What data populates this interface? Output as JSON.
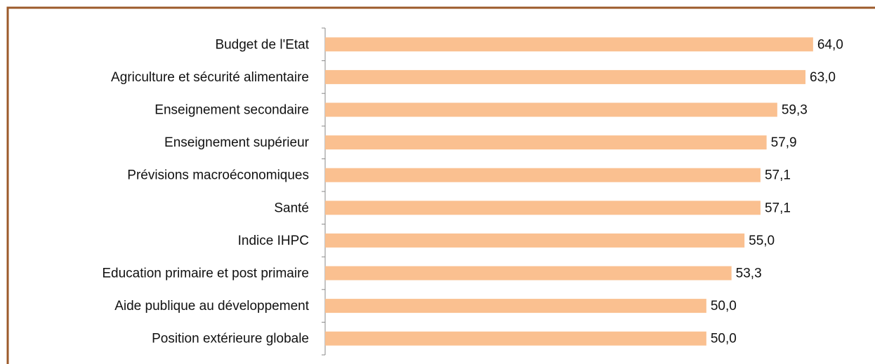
{
  "chart_data": {
    "type": "hbar",
    "categories": [
      "Budget de l'Etat",
      "Agriculture et sécurité alimentaire",
      "Enseignement secondaire",
      "Enseignement supérieur",
      "Prévisions macroéconomiques",
      "Santé",
      "Indice IHPC",
      "Education primaire et post primaire",
      "Aide publique au développement",
      "Position extérieure globale"
    ],
    "values": [
      64.0,
      63.0,
      59.3,
      57.9,
      57.1,
      57.1,
      55.0,
      53.3,
      50.0,
      50.0
    ],
    "value_labels": [
      "64,0",
      "63,0",
      "59,3",
      "57,9",
      "57,1",
      "57,1",
      "55,0",
      "53,3",
      "50,0",
      "50,0"
    ],
    "color": "#fac090",
    "xlim": [
      0,
      70
    ]
  }
}
